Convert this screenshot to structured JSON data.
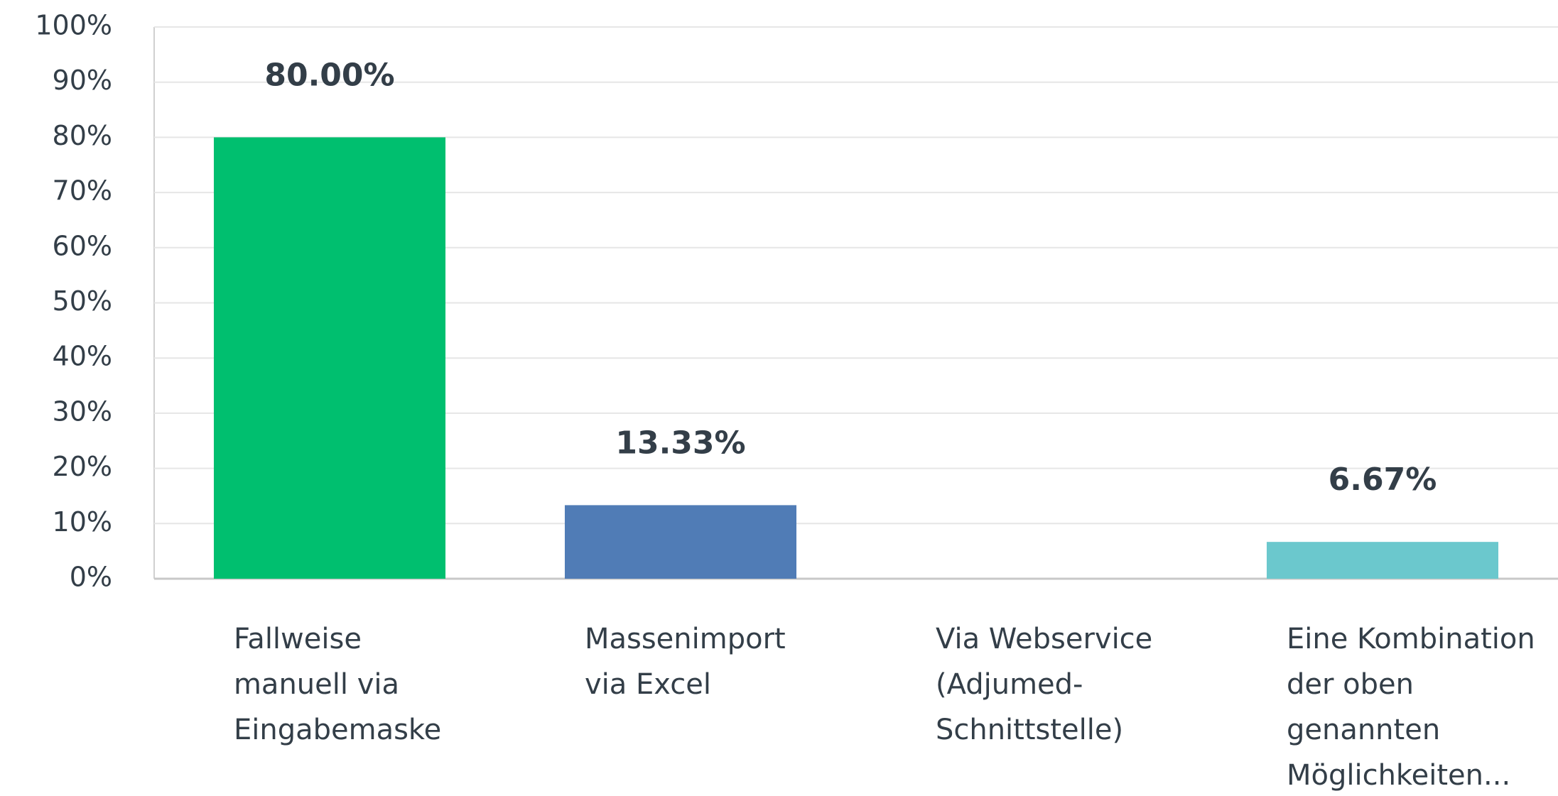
{
  "chart_data": {
    "type": "bar",
    "categories": [
      "Fallweise manuell via Eingabemaske",
      "Massenimport via Excel",
      "Via Webservice (Adjumed-Schnittstelle)",
      "Eine Kombination der oben genannten Möglichkeiten..."
    ],
    "values": [
      80,
      13.33,
      0,
      6.67
    ],
    "value_labels": [
      "80.00%",
      "13.33%",
      null,
      "6.67%"
    ],
    "colors": [
      "#00bf6f",
      "#507cb6",
      "#f9be00",
      "#6bc8cd"
    ],
    "ylim": [
      0,
      100
    ],
    "yticks": [
      {
        "value": 0,
        "label": "0%"
      },
      {
        "value": 10,
        "label": "10%"
      },
      {
        "value": 20,
        "label": "20%"
      },
      {
        "value": 30,
        "label": "30%"
      },
      {
        "value": 40,
        "label": "40%"
      },
      {
        "value": 50,
        "label": "50%"
      },
      {
        "value": 60,
        "label": "60%"
      },
      {
        "value": 70,
        "label": "70%"
      },
      {
        "value": 80,
        "label": "80%"
      },
      {
        "value": 90,
        "label": "90%"
      },
      {
        "value": 100,
        "label": "100%"
      }
    ],
    "grid": true
  }
}
